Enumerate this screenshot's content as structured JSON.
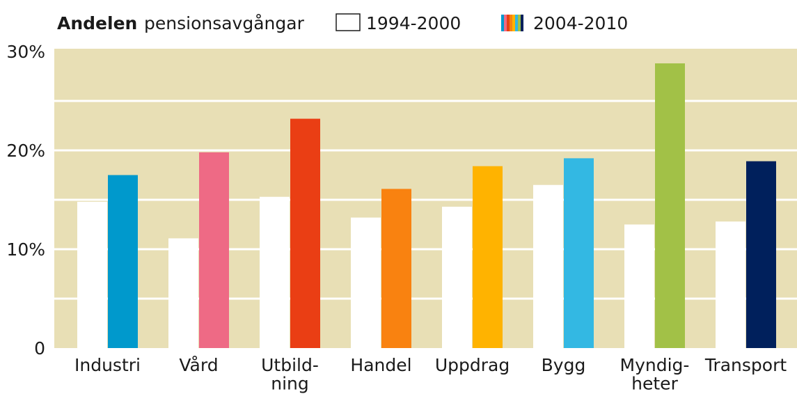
{
  "chart_data": {
    "type": "bar",
    "title": "Andelen",
    "subtitle": "pensionsavgångar",
    "categories": [
      "Industri",
      "Vård",
      "Utbild-\nning",
      "Handel",
      "Uppdrag",
      "Bygg",
      "Myndig-\nheter",
      "Transport"
    ],
    "series": [
      {
        "name": "1994-2000",
        "color": "#ffffff",
        "values": [
          14.8,
          11.1,
          15.3,
          13.2,
          14.3,
          16.5,
          12.5,
          12.8
        ]
      },
      {
        "name": "2004-2010",
        "colors": [
          "#0099cc",
          "#ee6a85",
          "#ea3e14",
          "#f98210",
          "#ffb300",
          "#33b8e3",
          "#a2c147",
          "#00205c"
        ],
        "values": [
          17.5,
          19.8,
          23.2,
          16.1,
          18.4,
          19.2,
          28.8,
          18.9
        ]
      }
    ],
    "ylim": [
      0,
      30
    ],
    "yticks": [
      0,
      {
        "value": 10,
        "label": "10%"
      },
      {
        "value": 20,
        "label": "20%"
      },
      {
        "value": 30,
        "label": "30%"
      }
    ],
    "minor_gridlines": [
      5,
      15,
      25
    ],
    "grid": true,
    "background": "#e8dfb5"
  }
}
